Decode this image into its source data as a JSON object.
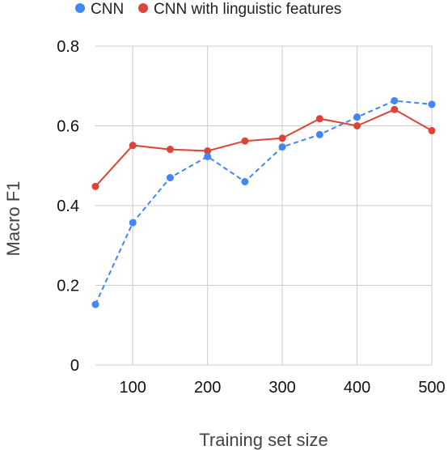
{
  "chart_data": {
    "type": "line",
    "xlabel": "Training set size",
    "ylabel": "Macro F1",
    "xlim": [
      50,
      500
    ],
    "ylim": [
      0,
      0.8
    ],
    "x_ticks": [
      100,
      200,
      300,
      400,
      500
    ],
    "y_ticks": [
      0,
      0.2,
      0.4,
      0.6,
      0.8
    ],
    "y_tick_labels": [
      "0",
      "0.2",
      "0.4",
      "0.6",
      "0.8"
    ],
    "grid": true,
    "legend_position": "top",
    "x": [
      50,
      100,
      150,
      200,
      250,
      300,
      350,
      400,
      450,
      500
    ],
    "series": [
      {
        "name": "CNN",
        "color": "#4285F4",
        "line_style": "dashed",
        "values": [
          0.152,
          0.357,
          0.47,
          0.523,
          0.46,
          0.547,
          0.578,
          0.622,
          0.663,
          0.654
        ]
      },
      {
        "name": "CNN with linguistic features",
        "color": "#DB4437",
        "line_style": "solid",
        "values": [
          0.448,
          0.551,
          0.541,
          0.537,
          0.562,
          0.569,
          0.618,
          0.6,
          0.641,
          0.588
        ]
      }
    ]
  }
}
